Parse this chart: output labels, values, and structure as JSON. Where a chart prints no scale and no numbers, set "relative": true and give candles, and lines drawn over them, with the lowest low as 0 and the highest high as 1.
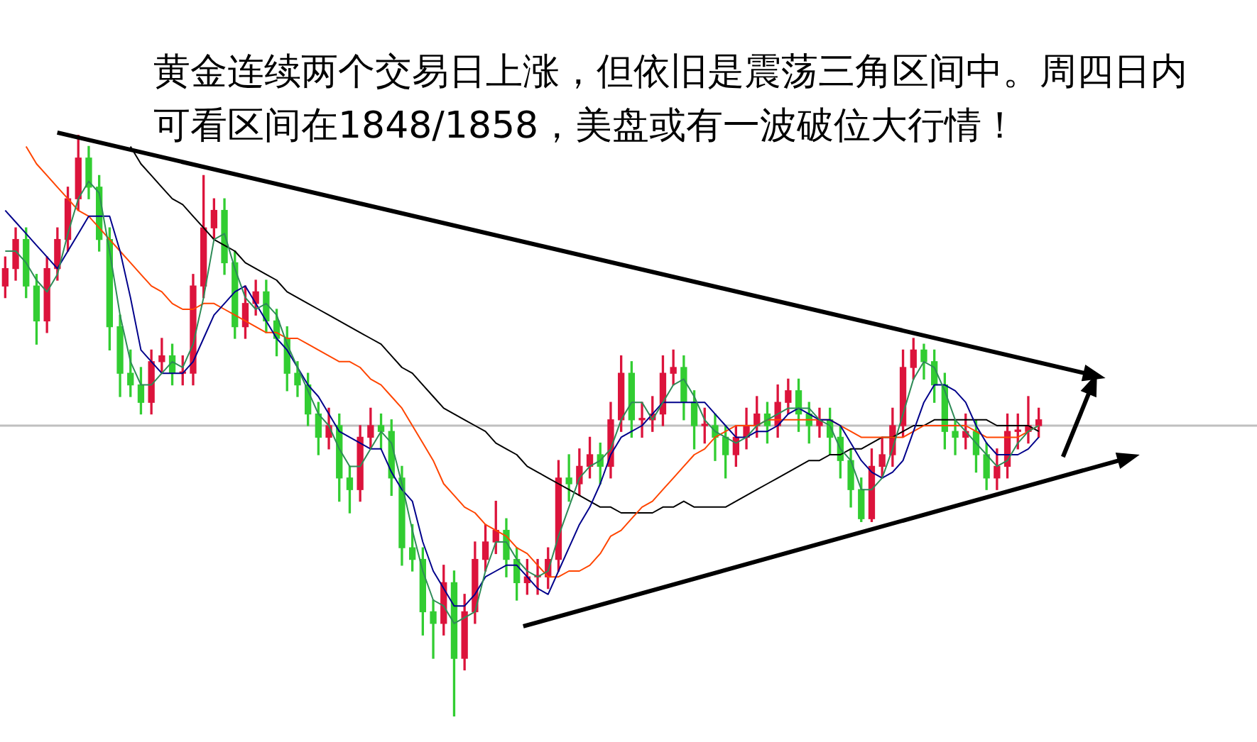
{
  "chart_data": {
    "type": "candlestick",
    "relative": true,
    "title": "黄金连续两个交易日上涨，但依旧是震荡三角区间中。周四日内可看区间在1848/1858，美盘或有一波破位大行情！",
    "categories": [
      null,
      null,
      null,
      null,
      null,
      null,
      null,
      null,
      null,
      null,
      null,
      null,
      null,
      null,
      null,
      null,
      null,
      null,
      null,
      null,
      null,
      null,
      null,
      null,
      null,
      null,
      null,
      null,
      null,
      null,
      null,
      null,
      null,
      null,
      null,
      null,
      null,
      null,
      null,
      null,
      null,
      null,
      null,
      null,
      null,
      null,
      null,
      null,
      null,
      null,
      null,
      null,
      null,
      null,
      null,
      null,
      null,
      null,
      null,
      null,
      null,
      null,
      null,
      null,
      null,
      null,
      null,
      null,
      null,
      null,
      null,
      null,
      null,
      null,
      null,
      null,
      null,
      null,
      null,
      null,
      null,
      null,
      null,
      null,
      null,
      null,
      null,
      null,
      null,
      null,
      null,
      null,
      null,
      null,
      null,
      null,
      null,
      null,
      null,
      null
    ],
    "ohlc": [
      [
        0.74,
        0.79,
        0.72,
        0.77
      ],
      [
        0.77,
        0.84,
        0.75,
        0.82
      ],
      [
        0.82,
        0.84,
        0.72,
        0.74
      ],
      [
        0.74,
        0.76,
        0.64,
        0.68
      ],
      [
        0.68,
        0.79,
        0.66,
        0.77
      ],
      [
        0.77,
        0.84,
        0.75,
        0.82
      ],
      [
        0.82,
        0.91,
        0.8,
        0.89
      ],
      [
        0.89,
        1,
        0.87,
        0.96
      ],
      [
        0.96,
        0.98,
        0.89,
        0.91
      ],
      [
        0.91,
        0.93,
        0.8,
        0.82
      ],
      [
        0.82,
        0.84,
        0.63,
        0.67
      ],
      [
        0.67,
        0.69,
        0.55,
        0.59
      ],
      [
        0.59,
        0.63,
        0.55,
        0.57
      ],
      [
        0.57,
        0.6,
        0.52,
        0.54
      ],
      [
        0.54,
        0.63,
        0.52,
        0.61
      ],
      [
        0.61,
        0.65,
        0.59,
        0.62
      ],
      [
        0.62,
        0.64,
        0.57,
        0.59
      ],
      [
        0.59,
        0.62,
        0.57,
        0.59
      ],
      [
        0.59,
        0.76,
        0.57,
        0.74
      ],
      [
        0.74,
        0.93,
        0.72,
        0.84
      ],
      [
        0.84,
        0.89,
        0.82,
        0.87
      ],
      [
        0.87,
        0.89,
        0.76,
        0.78
      ],
      [
        0.78,
        0.8,
        0.65,
        0.67
      ],
      [
        0.67,
        0.74,
        0.65,
        0.71
      ],
      [
        0.71,
        0.75,
        0.69,
        0.73
      ],
      [
        0.73,
        0.75,
        0.66,
        0.68
      ],
      [
        0.68,
        0.7,
        0.62,
        0.65
      ],
      [
        0.65,
        0.67,
        0.56,
        0.59
      ],
      [
        0.59,
        0.61,
        0.55,
        0.57
      ],
      [
        0.57,
        0.59,
        0.5,
        0.52
      ],
      [
        0.52,
        0.54,
        0.45,
        0.48
      ],
      [
        0.48,
        0.53,
        0.46,
        0.5
      ],
      [
        0.5,
        0.52,
        0.37,
        0.41
      ],
      [
        0.41,
        0.43,
        0.35,
        0.39
      ],
      [
        0.39,
        0.5,
        0.37,
        0.48
      ],
      [
        0.48,
        0.53,
        0.46,
        0.5
      ],
      [
        0.5,
        0.52,
        0.46,
        0.49
      ],
      [
        0.49,
        0.51,
        0.38,
        0.41
      ],
      [
        0.41,
        0.43,
        0.26,
        0.29
      ],
      [
        0.29,
        0.33,
        0.25,
        0.27
      ],
      [
        0.27,
        0.29,
        0.14,
        0.18
      ],
      [
        0.18,
        0.2,
        0.1,
        0.16
      ],
      [
        0.16,
        0.26,
        0.14,
        0.23
      ],
      [
        0.23,
        0.25,
        0,
        0.1
      ],
      [
        0.1,
        0.21,
        0.08,
        0.18
      ],
      [
        0.18,
        0.3,
        0.16,
        0.27
      ],
      [
        0.27,
        0.33,
        0.25,
        0.3
      ],
      [
        0.3,
        0.37,
        0.28,
        0.32
      ],
      [
        0.32,
        0.34,
        0.24,
        0.27
      ],
      [
        0.27,
        0.29,
        0.2,
        0.23
      ],
      [
        0.23,
        0.27,
        0.21,
        0.24
      ],
      [
        0.24,
        0.27,
        0.21,
        0.24
      ],
      [
        0.24,
        0.29,
        0.22,
        0.27
      ],
      [
        0.27,
        0.44,
        0.25,
        0.41
      ],
      [
        0.41,
        0.45,
        0.37,
        0.4
      ],
      [
        0.4,
        0.46,
        0.38,
        0.43
      ],
      [
        0.43,
        0.48,
        0.41,
        0.45
      ],
      [
        0.45,
        0.47,
        0.4,
        0.43
      ],
      [
        0.43,
        0.54,
        0.41,
        0.51
      ],
      [
        0.51,
        0.62,
        0.49,
        0.59
      ],
      [
        0.59,
        0.61,
        0.48,
        0.51
      ],
      [
        0.51,
        0.54,
        0.48,
        0.51
      ],
      [
        0.51,
        0.55,
        0.49,
        0.52
      ],
      [
        0.52,
        0.62,
        0.5,
        0.59
      ],
      [
        0.59,
        0.63,
        0.57,
        0.6
      ],
      [
        0.6,
        0.62,
        0.51,
        0.54
      ],
      [
        0.54,
        0.56,
        0.46,
        0.5
      ],
      [
        0.5,
        0.53,
        0.47,
        0.5
      ],
      [
        0.5,
        0.52,
        0.44,
        0.48
      ],
      [
        0.48,
        0.5,
        0.41,
        0.45
      ],
      [
        0.45,
        0.5,
        0.43,
        0.48
      ],
      [
        0.48,
        0.53,
        0.46,
        0.5
      ],
      [
        0.5,
        0.55,
        0.48,
        0.52
      ],
      [
        0.52,
        0.54,
        0.47,
        0.5
      ],
      [
        0.5,
        0.57,
        0.48,
        0.54
      ],
      [
        0.54,
        0.58,
        0.52,
        0.56
      ],
      [
        0.56,
        0.58,
        0.49,
        0.52
      ],
      [
        0.52,
        0.54,
        0.47,
        0.5
      ],
      [
        0.5,
        0.53,
        0.48,
        0.51
      ],
      [
        0.51,
        0.53,
        0.45,
        0.48
      ],
      [
        0.48,
        0.5,
        0.41,
        0.44
      ],
      [
        0.44,
        0.46,
        0.36,
        0.39
      ],
      [
        0.39,
        0.41,
        0.335,
        0.34
      ],
      [
        0.34,
        0.46,
        0.335,
        0.43
      ],
      [
        0.43,
        0.48,
        0.41,
        0.45
      ],
      [
        0.45,
        0.53,
        0.43,
        0.5
      ],
      [
        0.5,
        0.63,
        0.48,
        0.6
      ],
      [
        0.6,
        0.65,
        0.58,
        0.63
      ],
      [
        0.63,
        0.64,
        0.58,
        0.61
      ],
      [
        0.61,
        0.63,
        0.54,
        0.57
      ],
      [
        0.57,
        0.59,
        0.46,
        0.49
      ],
      [
        0.49,
        0.51,
        0.45,
        0.48
      ],
      [
        0.48,
        0.52,
        0.46,
        0.49
      ],
      [
        0.49,
        0.51,
        0.42,
        0.45
      ],
      [
        0.45,
        0.47,
        0.39,
        0.41
      ],
      [
        0.41,
        0.46,
        0.39,
        0.43
      ],
      [
        0.43,
        0.52,
        0.41,
        0.49
      ],
      [
        0.49,
        0.52,
        0.46,
        0.49
      ],
      [
        0.49,
        0.55,
        0.47,
        0.5
      ],
      [
        0.5,
        0.53,
        0.48,
        0.51
      ]
    ],
    "colors": [
      "#dc143c",
      "#dc143c",
      "#32cd32",
      "#32cd32",
      "#dc143c",
      "#dc143c",
      "#dc143c",
      "#dc143c",
      "#32cd32",
      "#32cd32",
      "#32cd32",
      "#32cd32",
      "#32cd32",
      "#32cd32",
      "#dc143c",
      "#dc143c",
      "#32cd32",
      "#dc143c",
      "#dc143c",
      "#dc143c",
      "#dc143c",
      "#32cd32",
      "#32cd32",
      "#dc143c",
      "#dc143c",
      "#32cd32",
      "#32cd32",
      "#32cd32",
      "#32cd32",
      "#32cd32",
      "#32cd32",
      "#dc143c",
      "#32cd32",
      "#32cd32",
      "#dc143c",
      "#dc143c",
      "#32cd32",
      "#32cd32",
      "#32cd32",
      "#32cd32",
      "#32cd32",
      "#32cd32",
      "#dc143c",
      "#32cd32",
      "#dc143c",
      "#dc143c",
      "#dc143c",
      "#dc143c",
      "#32cd32",
      "#32cd32",
      "#dc143c",
      "#dc143c",
      "#dc143c",
      "#dc143c",
      "#32cd32",
      "#dc143c",
      "#dc143c",
      "#32cd32",
      "#dc143c",
      "#dc143c",
      "#32cd32",
      "#dc143c",
      "#dc143c",
      "#dc143c",
      "#dc143c",
      "#32cd32",
      "#32cd32",
      "#dc143c",
      "#32cd32",
      "#32cd32",
      "#dc143c",
      "#dc143c",
      "#dc143c",
      "#32cd32",
      "#dc143c",
      "#dc143c",
      "#32cd32",
      "#32cd32",
      "#dc143c",
      "#32cd32",
      "#32cd32",
      "#32cd32",
      "#32cd32",
      "#dc143c",
      "#dc143c",
      "#dc143c",
      "#dc143c",
      "#dc143c",
      "#32cd32",
      "#32cd32",
      "#32cd32",
      "#32cd32",
      "#dc143c",
      "#32cd32",
      "#32cd32",
      "#dc143c",
      "#dc143c",
      "#dc143c",
      "#dc143c",
      "#dc143c"
    ],
    "series": [
      {
        "type": "line",
        "color": "#2e8b57",
        "values": [
          0.8,
          0.8,
          0.78,
          0.75,
          0.73,
          0.76,
          0.83,
          0.89,
          0.92,
          0.9,
          0.8,
          0.69,
          0.61,
          0.57,
          0.57,
          0.59,
          0.61,
          0.6,
          0.64,
          0.72,
          0.82,
          0.83,
          0.77,
          0.72,
          0.7,
          0.71,
          0.69,
          0.64,
          0.6,
          0.56,
          0.52,
          0.5,
          0.46,
          0.43,
          0.43,
          0.46,
          0.49,
          0.47,
          0.4,
          0.32,
          0.25,
          0.2,
          0.19,
          0.16,
          0.17,
          0.18,
          0.25,
          0.3,
          0.3,
          0.27,
          0.25,
          0.24,
          0.25,
          0.31,
          0.36,
          0.41,
          0.43,
          0.44,
          0.46,
          0.51,
          0.54,
          0.54,
          0.51,
          0.54,
          0.57,
          0.58,
          0.55,
          0.51,
          0.49,
          0.48,
          0.47,
          0.48,
          0.5,
          0.51,
          0.52,
          0.53,
          0.53,
          0.53,
          0.51,
          0.5,
          0.46,
          0.44,
          0.39,
          0.39,
          0.41,
          0.46,
          0.52,
          0.58,
          0.61,
          0.6,
          0.56,
          0.51,
          0.49,
          0.47,
          0.45,
          0.43,
          0.44,
          0.47,
          0.49,
          0.5
        ]
      },
      {
        "type": "line",
        "color": "#00008b",
        "values": [
          0.87,
          0.85,
          0.83,
          0.81,
          0.79,
          0.77,
          0.8,
          0.83,
          0.86,
          0.86,
          0.86,
          0.8,
          0.72,
          0.63,
          0.61,
          0.59,
          0.59,
          0.59,
          0.61,
          0.65,
          0.69,
          0.71,
          0.73,
          0.74,
          0.71,
          0.68,
          0.65,
          0.63,
          0.6,
          0.57,
          0.55,
          0.52,
          0.49,
          0.48,
          0.47,
          0.46,
          0.46,
          0.42,
          0.39,
          0.37,
          0.3,
          0.25,
          0.22,
          0.19,
          0.19,
          0.21,
          0.24,
          0.25,
          0.26,
          0.26,
          0.24,
          0.22,
          0.21,
          0.25,
          0.29,
          0.33,
          0.36,
          0.4,
          0.45,
          0.48,
          0.49,
          0.5,
          0.52,
          0.54,
          0.54,
          0.54,
          0.54,
          0.54,
          0.52,
          0.5,
          0.48,
          0.48,
          0.49,
          0.49,
          0.5,
          0.52,
          0.53,
          0.52,
          0.51,
          0.51,
          0.5,
          0.47,
          0.44,
          0.42,
          0.41,
          0.42,
          0.44,
          0.49,
          0.54,
          0.57,
          0.57,
          0.56,
          0.54,
          0.5,
          0.47,
          0.45,
          0.45,
          0.45,
          0.46,
          0.48
        ]
      },
      {
        "type": "line",
        "color": "#ff4500",
        "values": [
          null,
          null,
          0.98,
          0.95,
          0.93,
          0.91,
          0.89,
          0.87,
          0.86,
          0.84,
          0.82,
          0.8,
          0.78,
          0.76,
          0.74,
          0.73,
          0.71,
          0.7,
          0.7,
          0.71,
          0.71,
          0.7,
          0.69,
          0.68,
          0.67,
          0.66,
          0.66,
          0.65,
          0.65,
          0.64,
          0.63,
          0.62,
          0.61,
          0.61,
          0.6,
          0.58,
          0.57,
          0.55,
          0.53,
          0.5,
          0.47,
          0.44,
          0.4,
          0.38,
          0.36,
          0.35,
          0.33,
          0.32,
          0.31,
          0.29,
          0.28,
          0.26,
          0.24,
          0.24,
          0.25,
          0.25,
          0.26,
          0.28,
          0.31,
          0.32,
          0.34,
          0.36,
          0.37,
          0.39,
          0.41,
          0.43,
          0.45,
          0.46,
          0.48,
          0.49,
          0.5,
          0.5,
          0.5,
          0.51,
          0.51,
          0.51,
          0.51,
          0.51,
          0.51,
          0.51,
          0.5,
          0.49,
          0.48,
          0.48,
          0.48,
          0.48,
          0.48,
          0.49,
          0.5,
          0.5,
          0.5,
          0.5,
          0.5,
          0.49,
          0.48,
          0.48,
          0.48,
          0.48,
          0.49,
          0.5
        ]
      },
      {
        "type": "line",
        "color": "#000000",
        "values": [
          null,
          null,
          null,
          null,
          null,
          null,
          null,
          null,
          null,
          null,
          null,
          null,
          0.98,
          0.95,
          0.93,
          0.91,
          0.89,
          0.88,
          0.86,
          0.84,
          0.82,
          0.81,
          0.8,
          0.78,
          0.77,
          0.76,
          0.75,
          0.73,
          0.72,
          0.71,
          0.7,
          0.69,
          0.68,
          0.67,
          0.66,
          0.65,
          0.64,
          0.62,
          0.6,
          0.59,
          0.57,
          0.55,
          0.53,
          0.52,
          0.51,
          0.5,
          0.49,
          0.47,
          0.46,
          0.45,
          0.43,
          0.42,
          0.41,
          0.4,
          0.39,
          0.38,
          0.37,
          0.36,
          0.36,
          0.35,
          0.35,
          0.35,
          0.35,
          0.36,
          0.36,
          0.37,
          0.36,
          0.36,
          0.36,
          0.36,
          0.37,
          0.38,
          0.39,
          0.4,
          0.41,
          0.42,
          0.43,
          0.44,
          0.44,
          0.45,
          0.45,
          0.46,
          0.46,
          0.47,
          0.48,
          0.48,
          0.49,
          0.5,
          0.5,
          0.51,
          0.51,
          0.51,
          0.51,
          0.51,
          0.51,
          0.5,
          0.5,
          0.5,
          0.5,
          0.49
        ]
      }
    ],
    "ref_lines": [
      {
        "axis": "y",
        "value": 0.5,
        "color": "#c0c0c0"
      }
    ],
    "legend": false
  }
}
